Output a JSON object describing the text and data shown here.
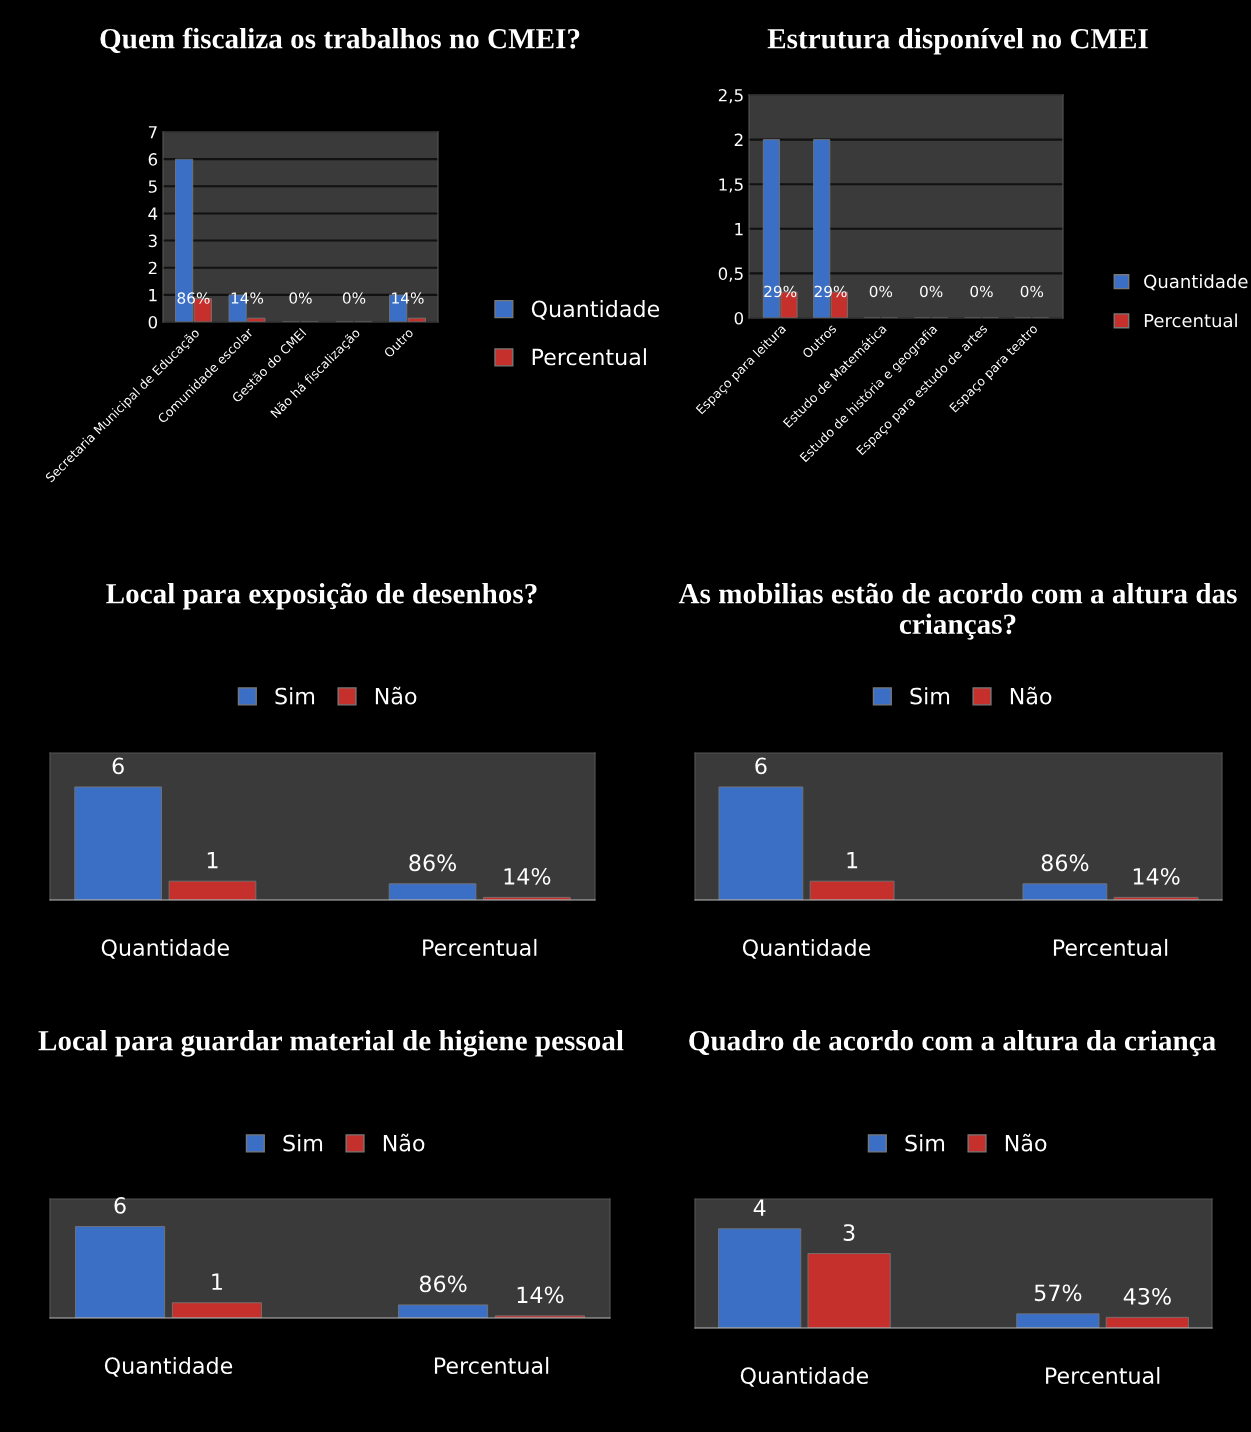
{
  "chart_data": [
    {
      "type": "bar",
      "title": "Quem fiscaliza os trabalhos no CMEI?",
      "categories": [
        "Secretaria Municipal de Educação",
        "Comunidade escolar",
        "Gestão do CMEI",
        "Não há fiscalização",
        "Outro"
      ],
      "series": [
        {
          "name": "Quantidade",
          "color": "#3b6fc6",
          "values": [
            6,
            1,
            0,
            0,
            1
          ]
        },
        {
          "name": "Percentual",
          "color": "#c6302c",
          "values": [
            0.86,
            0.14,
            0,
            0,
            0.14
          ],
          "value_labels": [
            "86%",
            "14%",
            "0%",
            "0%",
            "14%"
          ]
        }
      ],
      "ylim": [
        0,
        7
      ],
      "yticks": [
        0,
        1,
        2,
        3,
        4,
        5,
        6,
        7
      ],
      "grid": "y",
      "legend": "right"
    },
    {
      "type": "bar",
      "title": "Estrutura disponível no CMEI",
      "categories": [
        "Espaço para leitura",
        "Outros",
        "Estudo de Matemática",
        "Estudo de história e geografia",
        "Espaço para estudo de artes",
        "Espaço para teatro"
      ],
      "series": [
        {
          "name": "Quantidade",
          "color": "#3b6fc6",
          "values": [
            2,
            2,
            0,
            0,
            0,
            0
          ]
        },
        {
          "name": "Percentual",
          "color": "#c6302c",
          "values": [
            0.29,
            0.29,
            0,
            0,
            0,
            0
          ],
          "value_labels": [
            "29%",
            "29%",
            "0%",
            "0%",
            "0%",
            "0%"
          ]
        }
      ],
      "ylim": [
        0,
        2.5
      ],
      "yticks": [
        0,
        {
          "value": 0.5,
          "label": "0,5"
        },
        1,
        {
          "value": 1.5,
          "label": "1,5"
        },
        2,
        {
          "value": 2.5,
          "label": "2,5"
        }
      ],
      "grid": "y",
      "legend": "right"
    },
    {
      "type": "bar",
      "title": "Local para exposição de desenhos?",
      "categories": [
        "Quantidade",
        "Percentual"
      ],
      "series": [
        {
          "name": "Sim",
          "color": "#3b6fc6",
          "values": [
            6,
            0.86
          ],
          "value_labels": [
            "6",
            "86%"
          ]
        },
        {
          "name": "Não",
          "color": "#c6302c",
          "values": [
            1,
            0.14
          ],
          "value_labels": [
            "1",
            "14%"
          ]
        }
      ],
      "tick_labels": "x",
      "legend": "top"
    },
    {
      "type": "bar",
      "title": "As mobilias estão de acordo com a altura das crianças?",
      "categories": [
        "Quantidade",
        "Percentual"
      ],
      "series": [
        {
          "name": "Sim",
          "color": "#3b6fc6",
          "values": [
            6,
            0.86
          ],
          "value_labels": [
            "6",
            "86%"
          ]
        },
        {
          "name": "Não",
          "color": "#c6302c",
          "values": [
            1,
            0.14
          ],
          "value_labels": [
            "1",
            "14%"
          ]
        }
      ],
      "tick_labels": "x",
      "legend": "top"
    },
    {
      "type": "bar",
      "title": "Local para guardar material de higiene pessoal",
      "categories": [
        "Quantidade",
        "Percentual"
      ],
      "series": [
        {
          "name": "Sim",
          "color": "#3b6fc6",
          "values": [
            6,
            0.86
          ],
          "value_labels": [
            "6",
            "86%"
          ]
        },
        {
          "name": "Não",
          "color": "#c6302c",
          "values": [
            1,
            0.14
          ],
          "value_labels": [
            "1",
            "14%"
          ]
        }
      ],
      "tick_labels": "x",
      "legend": "top"
    },
    {
      "type": "bar",
      "title": "Quadro de acordo com a altura da criança",
      "categories": [
        "Quantidade",
        "Percentual"
      ],
      "series": [
        {
          "name": "Sim",
          "color": "#3b6fc6",
          "values": [
            4,
            0.57
          ],
          "value_labels": [
            "4",
            "57%"
          ]
        },
        {
          "name": "Não",
          "color": "#c6302c",
          "values": [
            3,
            0.43
          ],
          "value_labels": [
            "3",
            "43%"
          ]
        }
      ],
      "tick_labels": "x",
      "legend": "top"
    }
  ]
}
